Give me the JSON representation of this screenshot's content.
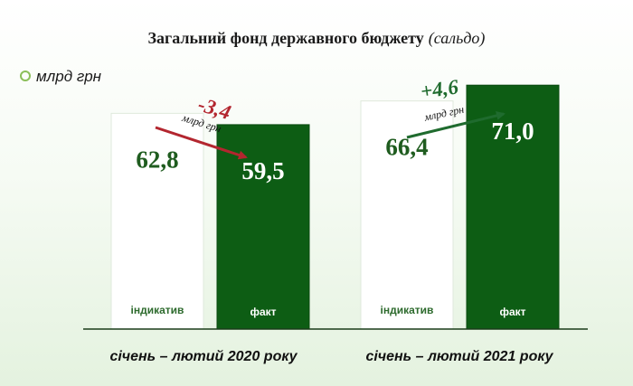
{
  "legend": {
    "unit": "млрд грн",
    "marker_color": "#8bbf5a"
  },
  "chart_data": {
    "type": "bar",
    "title": "Загальний фонд державного бюджету",
    "subtitle": "(сальдо)",
    "categories": [
      "січень – лютий 2020 року",
      "січень – лютий 2021 року"
    ],
    "series": [
      {
        "name": "індикатив",
        "values": [
          62.8,
          66.4
        ],
        "labels": [
          "62,8",
          "66,4"
        ],
        "color": "#ffffff",
        "text_color": "#1f5c1f",
        "caption_color": "#2e6b2e"
      },
      {
        "name": "факт",
        "values": [
          59.5,
          71.0
        ],
        "labels": [
          "59,5",
          "71,0"
        ],
        "color": "#0d5d14",
        "text_color": "#ffffff",
        "caption_color": "#ffffff"
      }
    ],
    "changes": [
      {
        "value": "-3,4",
        "unit": "млрд грн",
        "direction": "down",
        "color": "#b3262f"
      },
      {
        "value": "+4,6",
        "unit": "млрд грн",
        "direction": "up",
        "color": "#1f6b2e"
      }
    ],
    "ylim": [
      0,
      80
    ],
    "grid": false,
    "legend_position": "top-left"
  }
}
